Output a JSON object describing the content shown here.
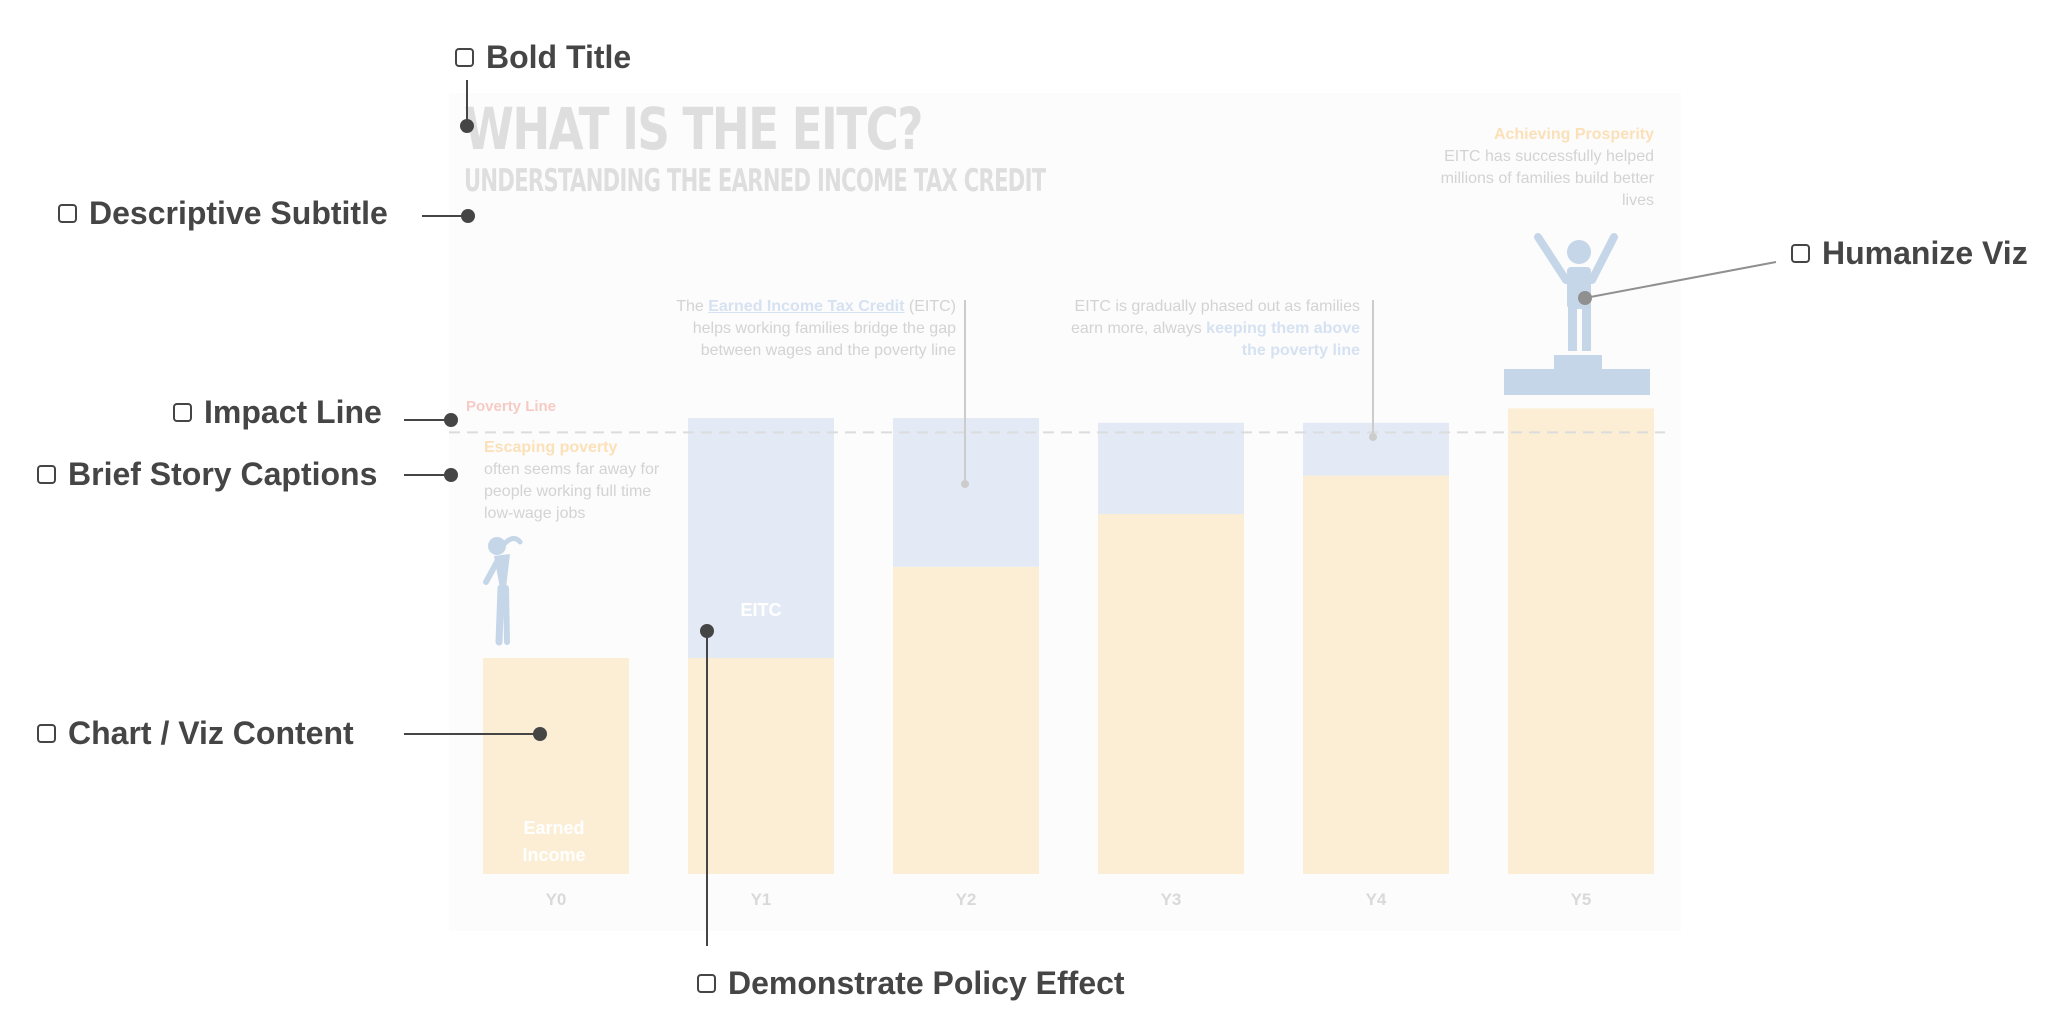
{
  "title": "WHAT IS THE EITC?",
  "subtitle": "UNDERSTANDING THE EARNED INCOME TAX CREDIT",
  "poverty_line_label": "Poverty Line",
  "captions": {
    "escaping": {
      "highlight": "Escaping poverty",
      "text": "often seems far away for people working full time low-wage jobs"
    },
    "eitc_intro": {
      "prefix": "The",
      "highlight": "Earned Income Tax Credit",
      "suffix": "(EITC)",
      "text": "helps working families bridge the gap between wages and the poverty line"
    },
    "phase_out": {
      "text": "EITC is gradually phased out as families earn more, always",
      "highlight": "keeping them above the poverty line"
    },
    "prosperity": {
      "highlight": "Achieving Prosperity",
      "text": "EITC has successfully helped millions of families build better lives"
    }
  },
  "bar_labels": {
    "earned_income": "Earned Income",
    "eitc": "EITC"
  },
  "annotations": {
    "bold_title": "Bold Title",
    "descriptive_subtitle": "Descriptive Subtitle",
    "impact_line": "Impact Line",
    "brief_story_captions": "Brief Story Captions",
    "chart_viz_content": "Chart / Viz Content",
    "demonstrate_policy_effect": "Demonstrate Policy Effect",
    "humanize_viz": "Humanize Viz"
  },
  "colors": {
    "earned_income": "#fbeed5",
    "eitc": "#e3eaf5",
    "poverty_line": "#dcdcdc",
    "figure": "#c5d6e8",
    "annotation": "#454545"
  },
  "chart_data": {
    "type": "bar",
    "stacked": true,
    "categories": [
      "Y0",
      "Y1",
      "Y2",
      "Y3",
      "Y4",
      "Y5"
    ],
    "series": [
      {
        "name": "Earned Income",
        "values": [
          45,
          45,
          64,
          75,
          83,
          97
        ]
      },
      {
        "name": "EITC",
        "values": [
          0,
          50,
          31,
          19,
          11,
          0
        ]
      }
    ],
    "poverty_line": 92,
    "ylim": [
      0,
      100
    ],
    "grid": false,
    "title": "WHAT IS THE EITC?"
  }
}
